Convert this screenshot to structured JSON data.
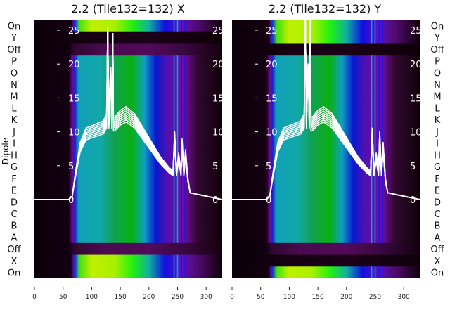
{
  "chart_data": [
    {
      "type": "heatmap",
      "title": "2.2 (Tile132=132) X",
      "ylabel": "Dipole",
      "xlim": [
        0,
        328
      ],
      "x_ticks": [
        0,
        50,
        100,
        150,
        200,
        250,
        300
      ],
      "rows": [
        {
          "label": "On",
          "kind": "on"
        },
        {
          "label": "Y",
          "kind": "dark"
        },
        {
          "label": "Off",
          "kind": "off"
        },
        {
          "label": "P",
          "kind": "dipole"
        },
        {
          "label": "O",
          "kind": "dipole"
        },
        {
          "label": "N",
          "kind": "dipole"
        },
        {
          "label": "M",
          "kind": "dipole"
        },
        {
          "label": "L",
          "kind": "dipole"
        },
        {
          "label": "K",
          "kind": "dipole"
        },
        {
          "label": "J",
          "kind": "dipole"
        },
        {
          "label": "I",
          "kind": "dipole"
        },
        {
          "label": "H",
          "kind": "dipole"
        },
        {
          "label": "G",
          "kind": "dipole"
        },
        {
          "label": "F",
          "kind": "dipole"
        },
        {
          "label": "E",
          "kind": "dipole"
        },
        {
          "label": "D",
          "kind": "dipole"
        },
        {
          "label": "C",
          "kind": "dipole"
        },
        {
          "label": "B",
          "kind": "dipole"
        },
        {
          "label": "A",
          "kind": "dipole"
        },
        {
          "label": "Off",
          "kind": "off"
        },
        {
          "label": "X",
          "kind": "on"
        },
        {
          "label": "On",
          "kind": "on"
        }
      ],
      "overlay_axis": {
        "ticks": [
          0,
          5,
          10,
          15,
          20,
          25
        ],
        "ylim": [
          0,
          26
        ]
      },
      "overlay_line": {
        "x": [
          0,
          60,
          66,
          72,
          80,
          90,
          105,
          120,
          126,
          128,
          130,
          133,
          135,
          137,
          138,
          140,
          150,
          160,
          175,
          190,
          205,
          220,
          235,
          242,
          245,
          248,
          252,
          256,
          258,
          261,
          264,
          268,
          272,
          300,
          328
        ],
        "y": [
          0,
          0,
          0.5,
          4,
          8,
          10,
          10.5,
          11,
          12,
          25.5,
          12,
          19.5,
          12,
          24.5,
          11.5,
          11.5,
          12.5,
          13,
          12,
          10,
          8,
          6,
          4.5,
          4,
          9.5,
          4,
          6.5,
          4,
          8.5,
          4,
          7,
          3,
          1,
          0.5,
          0
        ]
      }
    },
    {
      "type": "heatmap",
      "title": "2.2 (Tile132=132) Y",
      "xlim": [
        0,
        328
      ],
      "x_ticks": [
        0,
        50,
        100,
        150,
        200,
        250,
        300
      ],
      "rows": [
        {
          "label": "On",
          "kind": "on"
        },
        {
          "label": "Y",
          "kind": "on"
        },
        {
          "label": "Off",
          "kind": "dark"
        },
        {
          "label": "P",
          "kind": "dipole"
        },
        {
          "label": "O",
          "kind": "dipole"
        },
        {
          "label": "N",
          "kind": "dipole"
        },
        {
          "label": "M",
          "kind": "dipole"
        },
        {
          "label": "L",
          "kind": "dipole"
        },
        {
          "label": "K",
          "kind": "dipole"
        },
        {
          "label": "J",
          "kind": "dipole"
        },
        {
          "label": "I",
          "kind": "dipole"
        },
        {
          "label": "H",
          "kind": "dipole"
        },
        {
          "label": "G",
          "kind": "dipole"
        },
        {
          "label": "F",
          "kind": "dipole"
        },
        {
          "label": "E",
          "kind": "dipole"
        },
        {
          "label": "D",
          "kind": "dipole"
        },
        {
          "label": "C",
          "kind": "dipole"
        },
        {
          "label": "B",
          "kind": "dipole"
        },
        {
          "label": "A",
          "kind": "dipole"
        },
        {
          "label": "Off",
          "kind": "off"
        },
        {
          "label": "X",
          "kind": "dark"
        },
        {
          "label": "On",
          "kind": "on"
        }
      ],
      "overlay_axis": {
        "ticks": [
          0,
          5,
          10,
          15,
          20,
          25
        ],
        "ylim": [
          0,
          26
        ]
      },
      "overlay_line": {
        "x": [
          0,
          60,
          66,
          72,
          80,
          90,
          105,
          120,
          126,
          128,
          130,
          133,
          135,
          137,
          138,
          140,
          150,
          160,
          175,
          190,
          205,
          220,
          235,
          242,
          245,
          248,
          252,
          256,
          258,
          261,
          264,
          268,
          272,
          300,
          328
        ],
        "y": [
          0,
          0,
          0.5,
          4,
          8,
          10,
          10.5,
          11,
          12,
          27,
          12,
          20,
          12,
          27,
          11.5,
          11.5,
          12.5,
          13,
          12,
          10,
          8,
          6,
          4.5,
          4,
          10,
          4,
          6.5,
          4,
          9.5,
          4,
          8,
          3,
          1,
          0.5,
          0
        ]
      }
    }
  ],
  "colors": {
    "background": "#0a0008",
    "line": "#ffffff"
  }
}
